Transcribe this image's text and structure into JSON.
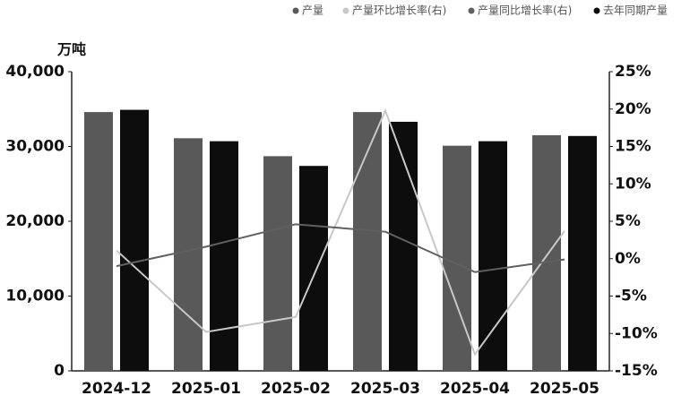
{
  "chart_data": {
    "type": "bar",
    "y_label": "万吨",
    "categories": [
      "2024-12",
      "2025-01",
      "2025-02",
      "2025-03",
      "2025-04",
      "2025-05"
    ],
    "series": [
      {
        "name": "产量",
        "type": "bar",
        "color": "#595959",
        "values": [
          34600,
          31100,
          28700,
          34600,
          30100,
          31500
        ]
      },
      {
        "name": "产量环比增长率(右)",
        "type": "line",
        "axis": "y2",
        "color": "#c8c8c8",
        "values": [
          1.1,
          -9.8,
          -7.8,
          19.8,
          -12.8,
          3.7
        ]
      },
      {
        "name": "产量同比增长率(右)",
        "type": "line",
        "axis": "y2",
        "color": "#606060",
        "values": [
          -1.0,
          1.6,
          4.6,
          3.6,
          -1.8,
          -0.1
        ]
      },
      {
        "name": "去年同期产量",
        "type": "bar",
        "color": "#0d0d0d",
        "values": [
          34900,
          30700,
          27400,
          33300,
          30700,
          31400
        ]
      }
    ],
    "ylim": [
      0,
      40000
    ],
    "yticks": [
      0,
      {
        "value": 10000,
        "label": "10,000"
      },
      {
        "value": 20000,
        "label": "20,000"
      },
      {
        "value": 30000,
        "label": "30,000"
      },
      {
        "value": 40000,
        "label": "40,000"
      }
    ],
    "y2lim": [
      -15,
      25
    ],
    "y2ticks": [
      {
        "value": -15,
        "label": "-15%"
      },
      {
        "value": -10,
        "label": "-10%"
      },
      {
        "value": -5,
        "label": "-5%"
      },
      {
        "value": 0,
        "label": "0%"
      },
      {
        "value": 5,
        "label": "5%"
      },
      {
        "value": 10,
        "label": "10%"
      },
      {
        "value": 15,
        "label": "15%"
      },
      {
        "value": 20,
        "label": "20%"
      },
      {
        "value": 25,
        "label": "25%"
      }
    ],
    "legend": "top-right"
  }
}
